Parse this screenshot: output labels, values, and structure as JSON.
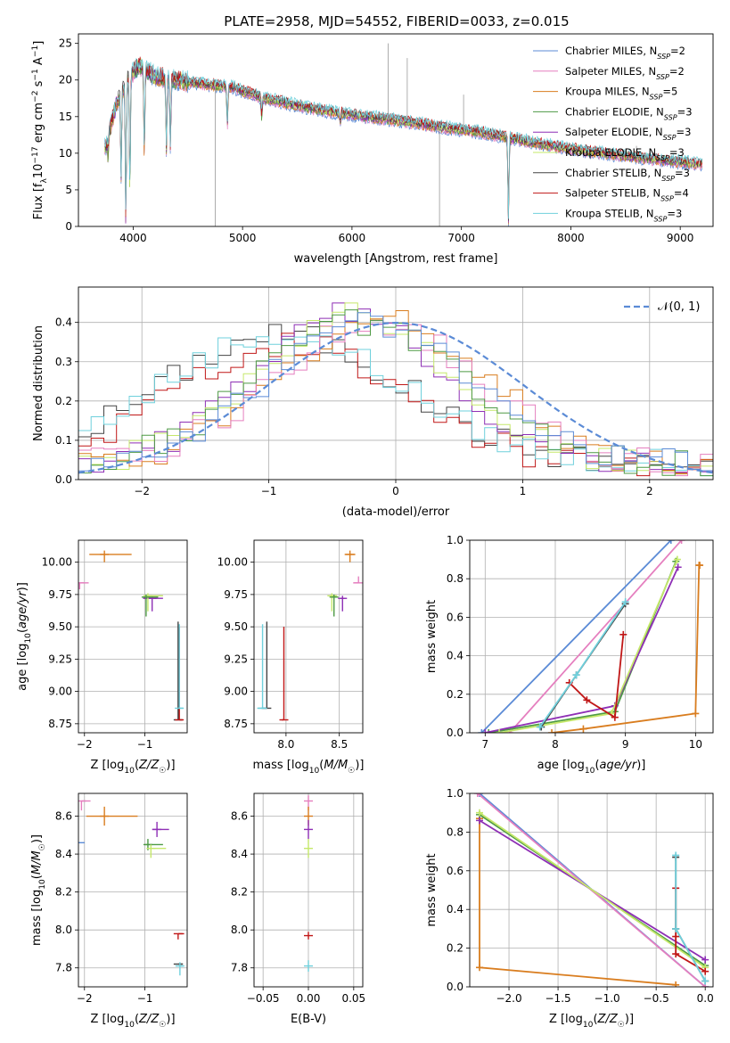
{
  "figure": {
    "title": "PLATE=2958, MJD=54552, FIBERID=0033, z=0.015"
  },
  "chart_data": [
    {
      "id": "spectrum",
      "type": "line",
      "xlabel": "wavelength [Angstrom, rest frame]",
      "ylabel": "Flux [f_λ 10^-17 erg cm^-2 s^-1 A^-1]",
      "xlim": [
        3500,
        9300
      ],
      "ylim": [
        0,
        26.3
      ],
      "xticks": [
        4000,
        5000,
        6000,
        7000,
        8000,
        9000
      ],
      "yticks": [
        0,
        5,
        10,
        15,
        20,
        25
      ],
      "grid": false,
      "legend_position": "top-right",
      "continuum_anchors": {
        "x": [
          3750,
          3850,
          3950,
          4050,
          4200,
          4400,
          4600,
          4900,
          5200,
          5600,
          6000,
          6400,
          6800,
          7200,
          7600,
          8000,
          8400,
          8800,
          9200
        ],
        "y": [
          11,
          17,
          20,
          22,
          20.5,
          20,
          19.5,
          19,
          17.5,
          16.2,
          15.2,
          14.5,
          13.6,
          12.8,
          11.6,
          10.6,
          9.8,
          9.1,
          8.5
        ]
      },
      "absorption_features": [
        {
          "x": 3770,
          "y": 10
        },
        {
          "x": 3890,
          "y": 7
        },
        {
          "x": 3933,
          "y": 1
        },
        {
          "x": 3970,
          "y": 5
        },
        {
          "x": 4102,
          "y": 10
        },
        {
          "x": 4304,
          "y": 10
        },
        {
          "x": 4340,
          "y": 11
        },
        {
          "x": 4861,
          "y": 14
        },
        {
          "x": 5175,
          "y": 15
        },
        {
          "x": 5893,
          "y": 14
        },
        {
          "x": 7430,
          "y": 1
        }
      ],
      "spikes": [
        {
          "x": 4750,
          "y": 0
        },
        {
          "x": 6800,
          "y": 0
        },
        {
          "x": 6330,
          "y": 25
        },
        {
          "x": 6505,
          "y": 23
        },
        {
          "x": 7020,
          "y": 18
        },
        {
          "x": 8600,
          "y": 11
        }
      ],
      "series": [
        {
          "name": "Chabrier MILES, N_SSP=2",
          "color": "#5b8bd6"
        },
        {
          "name": "Salpeter MILES, N_SSP=2",
          "color": "#e57fbf"
        },
        {
          "name": "Kroupa MILES, N_SSP=5",
          "color": "#d97d1f"
        },
        {
          "name": "Chabrier ELODIE, N_SSP=3",
          "color": "#4e9a45"
        },
        {
          "name": "Salpeter ELODIE, N_SSP=3",
          "color": "#8e2fb5"
        },
        {
          "name": "Kroupa ELODIE, N_SSP=3",
          "color": "#c5e86a"
        },
        {
          "name": "Chabrier STELIB, N_SSP=3",
          "color": "#444444"
        },
        {
          "name": "Salpeter STELIB, N_SSP=4",
          "color": "#c01717"
        },
        {
          "name": "Kroupa STELIB, N_SSP=3",
          "color": "#6fd0dc"
        }
      ]
    },
    {
      "id": "residuals",
      "type": "line",
      "xlabel": "(data-model)/error",
      "ylabel": "Normed distribution",
      "xlim": [
        -2.5,
        2.5
      ],
      "ylim": [
        0,
        0.49
      ],
      "xticks": [
        -2,
        -1,
        0,
        1,
        2
      ],
      "yticks": [
        0.0,
        0.1,
        0.2,
        0.3,
        0.4
      ],
      "grid": true,
      "legend_position": "top-right",
      "reference": {
        "name": "𝒩(0, 1)",
        "color": "#5b8bd6",
        "style": "dashed",
        "mean": 0,
        "sigma": 1
      },
      "bin_width": 0.1,
      "bin_start": -2.5,
      "profiles": [
        {
          "color": "#444444",
          "center": -0.9,
          "sigma": 0.95,
          "amp": 0.33,
          "floor": 0.04
        },
        {
          "color": "#c01717",
          "center": -0.85,
          "sigma": 0.9,
          "amp": 0.32,
          "floor": 0.03
        },
        {
          "color": "#6fd0dc",
          "center": -0.9,
          "sigma": 0.95,
          "amp": 0.33,
          "floor": 0.04
        },
        {
          "color": "#8e2fb5",
          "center": -0.35,
          "sigma": 0.75,
          "amp": 0.38,
          "floor": 0.04
        },
        {
          "color": "#c5e86a",
          "center": -0.3,
          "sigma": 0.75,
          "amp": 0.38,
          "floor": 0.04
        },
        {
          "color": "#d97d1f",
          "center": -0.1,
          "sigma": 0.8,
          "amp": 0.37,
          "floor": 0.04
        },
        {
          "color": "#e57fbf",
          "center": -0.15,
          "sigma": 0.8,
          "amp": 0.36,
          "floor": 0.04
        },
        {
          "color": "#4e9a45",
          "center": -0.3,
          "sigma": 0.8,
          "amp": 0.36,
          "floor": 0.04
        },
        {
          "color": "#5b8bd6",
          "center": -0.2,
          "sigma": 0.8,
          "amp": 0.36,
          "floor": 0.04
        }
      ]
    },
    {
      "id": "age-vs-Z",
      "type": "scatter",
      "xlabel": "Z [log10(Z/Z☉)]",
      "ylabel": "age  [log10(age/yr)]",
      "xlim": [
        -2.1,
        -0.3
      ],
      "ylim": [
        8.68,
        10.17
      ],
      "xticks": [
        -2,
        -1
      ],
      "yticks": [
        8.75,
        9.0,
        9.25,
        9.5,
        9.75,
        10.0
      ],
      "grid": true,
      "points": [
        {
          "color": "#d97d1f",
          "x": -1.67,
          "y": 10.06,
          "xerr": [
            0.25,
            0.45
          ],
          "yerr": [
            0.06,
            0.03
          ]
        },
        {
          "color": "#e57fbf",
          "x": -2.08,
          "y": 9.84,
          "xerr": [
            0.05,
            0.15
          ],
          "yerr": [
            0.05,
            0.0
          ]
        },
        {
          "color": "#8e2fb5",
          "x": -0.88,
          "y": 9.72,
          "xerr": [
            0.15,
            0.18
          ],
          "yerr": [
            0.1,
            0.02
          ]
        },
        {
          "color": "#c5e86a",
          "x": -0.95,
          "y": 9.74,
          "xerr": [
            0.05,
            0.25
          ],
          "yerr": [
            0.12,
            0.02
          ]
        },
        {
          "color": "#4e9a45",
          "x": -0.98,
          "y": 9.73,
          "xerr": [
            0.02,
            0.2
          ],
          "yerr": [
            0.15,
            0.02
          ]
        },
        {
          "color": "#444444",
          "x": -0.45,
          "y": 8.78,
          "xerr": [
            0.0,
            0.0
          ],
          "yerr": [
            0.0,
            0.76
          ]
        },
        {
          "color": "#c01717",
          "x": -0.43,
          "y": 8.78,
          "xerr": [
            0.0,
            0.05
          ],
          "yerr": [
            0.0,
            0.72
          ]
        },
        {
          "color": "#6fd0dc",
          "x": -0.43,
          "y": 8.87,
          "xerr": [
            0.0,
            0.06
          ],
          "yerr": [
            0.0,
            0.65
          ]
        }
      ]
    },
    {
      "id": "age-vs-mass",
      "type": "scatter",
      "xlabel": "mass [log10(M/M☉)]",
      "ylabel": "",
      "xlim": [
        7.7,
        8.72
      ],
      "ylim": [
        8.68,
        10.17
      ],
      "xticks": [
        8.0,
        8.5
      ],
      "yticks": [
        8.75,
        9.0,
        9.25,
        9.5,
        9.75,
        10.0
      ],
      "grid": true,
      "points": [
        {
          "color": "#d97d1f",
          "x": 8.6,
          "y": 10.06,
          "xerr": [
            0.05,
            0.05
          ],
          "yerr": [
            0.06,
            0.03
          ]
        },
        {
          "color": "#e57fbf",
          "x": 8.68,
          "y": 9.84,
          "xerr": [
            0.05,
            0.0
          ],
          "yerr": [
            0.0,
            0.05
          ]
        },
        {
          "color": "#8e2fb5",
          "x": 8.53,
          "y": 9.72,
          "xerr": [
            0.02,
            0.02
          ],
          "yerr": [
            0.1,
            0.02
          ]
        },
        {
          "color": "#c5e86a",
          "x": 8.43,
          "y": 9.74,
          "xerr": [
            0.02,
            0.05
          ],
          "yerr": [
            0.12,
            0.02
          ]
        },
        {
          "color": "#4e9a45",
          "x": 8.45,
          "y": 9.73,
          "xerr": [
            0.02,
            0.02
          ],
          "yerr": [
            0.15,
            0.02
          ]
        },
        {
          "color": "#444444",
          "x": 7.82,
          "y": 8.87,
          "xerr": [
            0.05,
            0.0
          ],
          "yerr": [
            0.0,
            0.67
          ]
        },
        {
          "color": "#c01717",
          "x": 7.98,
          "y": 8.78,
          "xerr": [
            0.02,
            0.0
          ],
          "yerr": [
            0.0,
            0.72
          ]
        },
        {
          "color": "#6fd0dc",
          "x": 7.78,
          "y": 8.87,
          "xerr": [
            0.05,
            0.03
          ],
          "yerr": [
            0.0,
            0.65
          ]
        }
      ]
    },
    {
      "id": "weight-vs-age",
      "type": "line",
      "xlabel": "age  [log10(age/yr)]",
      "ylabel": "mass weight",
      "xlim": [
        6.78,
        10.25
      ],
      "ylim": [
        0,
        1.0
      ],
      "xticks": [
        7,
        8,
        9,
        10
      ],
      "yticks": [
        0.0,
        0.2,
        0.4,
        0.6,
        0.8,
        1.0
      ],
      "grid": true,
      "series": [
        {
          "color": "#5b8bd6",
          "x": [
            6.95,
            9.65
          ],
          "y": [
            0.0,
            1.0
          ]
        },
        {
          "color": "#e57fbf",
          "x": [
            7.35,
            9.8
          ],
          "y": [
            0.0,
            1.0
          ]
        },
        {
          "color": "#d97d1f",
          "x": [
            7.95,
            8.4,
            10.0,
            10.05,
            10.06
          ],
          "y": [
            0.0,
            0.02,
            0.1,
            0.87,
            0.87
          ]
        },
        {
          "color": "#4e9a45",
          "x": [
            7.05,
            8.85,
            9.72
          ],
          "y": [
            0.0,
            0.11,
            0.89
          ]
        },
        {
          "color": "#8e2fb5",
          "x": [
            7.0,
            8.85,
            9.75
          ],
          "y": [
            0.0,
            0.14,
            0.86
          ]
        },
        {
          "color": "#c5e86a",
          "x": [
            7.2,
            8.8,
            9.74
          ],
          "y": [
            0.0,
            0.1,
            0.9
          ]
        },
        {
          "color": "#444444",
          "x": [
            7.8,
            8.3,
            9.0
          ],
          "y": [
            0.03,
            0.3,
            0.67
          ]
        },
        {
          "color": "#c01717",
          "x": [
            8.2,
            8.45,
            8.85,
            8.97
          ],
          "y": [
            0.26,
            0.17,
            0.08,
            0.51
          ]
        },
        {
          "color": "#6fd0dc",
          "x": [
            7.78,
            8.3,
            9.0
          ],
          "y": [
            0.03,
            0.3,
            0.68
          ]
        }
      ]
    },
    {
      "id": "mass-vs-Z",
      "type": "scatter",
      "xlabel": "Z [log10(Z/Z☉)]",
      "ylabel": "mass [log10(M/M☉)]",
      "xlim": [
        -2.1,
        -0.3
      ],
      "ylim": [
        7.7,
        8.72
      ],
      "xticks": [
        -2,
        -1
      ],
      "yticks": [
        7.8,
        8.0,
        8.2,
        8.4,
        8.6
      ],
      "grid": true,
      "points": [
        {
          "color": "#e57fbf",
          "x": -2.05,
          "y": 8.68,
          "xerr": [
            0.0,
            0.15
          ],
          "yerr": [
            0.05,
            0.0
          ]
        },
        {
          "color": "#d97d1f",
          "x": -1.67,
          "y": 8.6,
          "xerr": [
            0.3,
            0.55
          ],
          "yerr": [
            0.05,
            0.05
          ]
        },
        {
          "color": "#8e2fb5",
          "x": -0.8,
          "y": 8.53,
          "xerr": [
            0.08,
            0.2
          ],
          "yerr": [
            0.04,
            0.04
          ]
        },
        {
          "color": "#4e9a45",
          "x": -0.95,
          "y": 8.45,
          "xerr": [
            0.05,
            0.25
          ],
          "yerr": [
            0.03,
            0.03
          ]
        },
        {
          "color": "#c5e86a",
          "x": -0.9,
          "y": 8.43,
          "xerr": [
            0.02,
            0.25
          ],
          "yerr": [
            0.05,
            0.02
          ]
        },
        {
          "color": "#5b8bd6",
          "x": -2.07,
          "y": 8.46,
          "xerr": [
            0.01,
            0.0
          ],
          "yerr": [
            0.0,
            0.0
          ]
        },
        {
          "color": "#c01717",
          "x": -0.45,
          "y": 7.98,
          "xerr": [
            0.0,
            0.1
          ],
          "yerr": [
            0.03,
            0.0
          ]
        },
        {
          "color": "#444444",
          "x": -0.45,
          "y": 7.82,
          "xerr": [
            0.0,
            0.08
          ],
          "yerr": [
            0.0,
            0.0
          ]
        },
        {
          "color": "#6fd0dc",
          "x": -0.42,
          "y": 7.81,
          "xerr": [
            0.0,
            0.05
          ],
          "yerr": [
            0.05,
            0.02
          ]
        }
      ]
    },
    {
      "id": "mass-vs-ebv",
      "type": "scatter",
      "xlabel": "E(B-V)",
      "ylabel": "",
      "xlim": [
        -0.06,
        0.06
      ],
      "ylim": [
        7.7,
        8.72
      ],
      "xticks": [
        -0.05,
        0.0,
        0.05
      ],
      "yticks": [
        7.8,
        8.0,
        8.2,
        8.4,
        8.6
      ],
      "grid": true,
      "points": [
        {
          "color": "#e57fbf",
          "x": 0.0,
          "y": 8.68,
          "yerr": [
            0.05,
            0.03
          ]
        },
        {
          "color": "#d97d1f",
          "x": 0.0,
          "y": 8.6,
          "yerr": [
            0.05,
            0.05
          ]
        },
        {
          "color": "#8e2fb5",
          "x": 0.0,
          "y": 8.53,
          "yerr": [
            0.05,
            0.05
          ]
        },
        {
          "color": "#c5e86a",
          "x": 0.0,
          "y": 8.43,
          "yerr": [
            0.05,
            0.05
          ]
        },
        {
          "color": "#c01717",
          "x": 0.0,
          "y": 7.97,
          "yerr": [
            0.02,
            0.02
          ]
        },
        {
          "color": "#6fd0dc",
          "x": 0.0,
          "y": 7.81,
          "yerr": [
            0.03,
            0.03
          ]
        }
      ]
    },
    {
      "id": "weight-vs-Z",
      "type": "line",
      "xlabel": "Z [log10(Z/Z☉)]",
      "ylabel": "mass weight",
      "xlim": [
        -2.4,
        0.08
      ],
      "ylim": [
        0,
        1.0
      ],
      "xticks": [
        -2.0,
        -1.5,
        -1.0,
        -0.5,
        0.0
      ],
      "yticks": [
        0.0,
        0.2,
        0.4,
        0.6,
        0.8,
        1.0
      ],
      "grid": true,
      "series": [
        {
          "color": "#5b8bd6",
          "x": [
            -2.3,
            0.0
          ],
          "y": [
            1.0,
            0.0
          ]
        },
        {
          "color": "#e57fbf",
          "x": [
            -2.32,
            0.0
          ],
          "y": [
            1.0,
            0.0
          ]
        },
        {
          "color": "#d97d1f",
          "x": [
            -2.3,
            -2.3,
            -0.3
          ],
          "y": [
            0.87,
            0.1,
            0.01
          ]
        },
        {
          "color": "#4e9a45",
          "x": [
            -2.3,
            0.0
          ],
          "y": [
            0.89,
            0.11
          ]
        },
        {
          "color": "#8e2fb5",
          "x": [
            -2.3,
            0.0
          ],
          "y": [
            0.86,
            0.14
          ]
        },
        {
          "color": "#c5e86a",
          "x": [
            -2.3,
            0.0
          ],
          "y": [
            0.9,
            0.1
          ]
        },
        {
          "color": "#444444",
          "x": [
            -0.3,
            -0.3,
            0.0
          ],
          "y": [
            0.67,
            0.3,
            0.03
          ]
        },
        {
          "color": "#c01717",
          "x": [
            -0.3,
            -0.3,
            -0.3,
            0.0
          ],
          "y": [
            0.51,
            0.26,
            0.17,
            0.08
          ]
        },
        {
          "color": "#6fd0dc",
          "x": [
            -0.3,
            -0.3,
            0.0
          ],
          "y": [
            0.68,
            0.3,
            0.03
          ]
        }
      ]
    }
  ]
}
